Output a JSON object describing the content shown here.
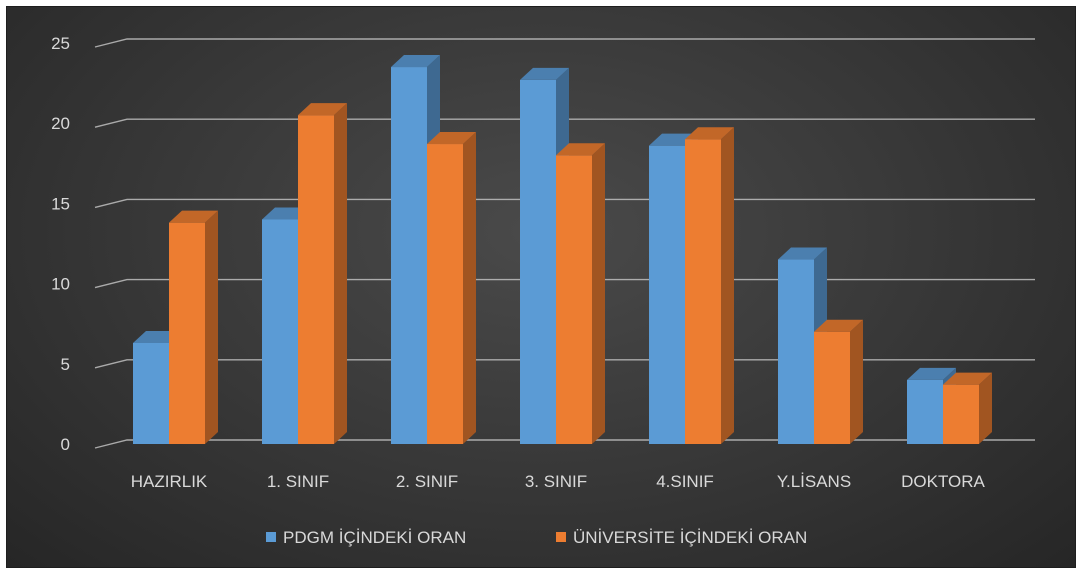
{
  "colors": {
    "series_blue": "#5b9bd5",
    "series_orange": "#ed7d31",
    "grid": "#bfbfbf",
    "text": "#d9d9d9",
    "background": "#3a3a3a"
  },
  "chart_data": {
    "type": "bar",
    "style": "3d-clustered-column",
    "categories": [
      "HAZIRLIK",
      "1. SINIF",
      "2. SINIF",
      "3. SINIF",
      "4.SINIF",
      "Y.LİSANS",
      "DOKTORA"
    ],
    "series": [
      {
        "name": "PDGM İÇİNDEKİ ORAN",
        "color": "#5b9bd5",
        "values": [
          6.3,
          14.0,
          23.5,
          22.7,
          18.6,
          11.5,
          4.0
        ]
      },
      {
        "name": "ÜNİVERSİTE İÇİNDEKİ ORAN",
        "color": "#ed7d31",
        "values": [
          13.8,
          20.5,
          18.7,
          18.0,
          19.0,
          7.0,
          3.7
        ]
      }
    ],
    "yticks": [
      "0",
      "5",
      "10",
      "15",
      "20",
      "25"
    ],
    "ylim": [
      0,
      25
    ],
    "grid": true,
    "legend_position": "bottom"
  }
}
